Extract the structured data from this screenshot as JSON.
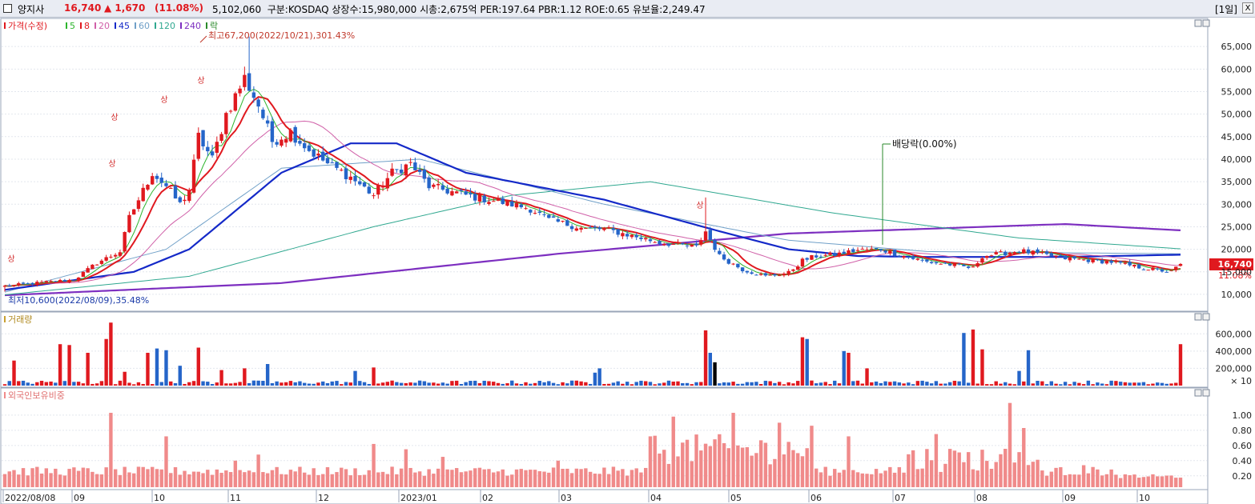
{
  "header": {
    "stock_name": "양지사",
    "price": "16,740",
    "change": "▲ 1,670",
    "change_pct": "(11.08%)",
    "info": "5,102,060  구분:KOSDAQ 상장수:15,980,000 시총:2,675억 PER:197.64 PBR:1.12 ROE:0.65 유보율:2,249.47",
    "period": "[1일]",
    "close": "X"
  },
  "colors": {
    "up": "#e0191f",
    "down": "#2565c9",
    "ma5": "#2db52d",
    "ma8": "#e0191f",
    "ma20": "#d060a8",
    "ma45": "#1429c8",
    "ma60": "#70a0c8",
    "ma120": "#30a890",
    "ma240": "#7d2fc0",
    "foreign": "#f08a8a",
    "ann": "#2a8a2a"
  },
  "chart_data": [
    {
      "type": "candlestick",
      "legend": [
        {
          "label": "가격(수정)",
          "color": "#e0191f"
        },
        {
          "label": "5",
          "color": "#2db52d"
        },
        {
          "label": "8",
          "color": "#e0191f"
        },
        {
          "label": "20",
          "color": "#d060a8"
        },
        {
          "label": "45",
          "color": "#1429c8"
        },
        {
          "label": "60",
          "color": "#70a0c8"
        },
        {
          "label": "120",
          "color": "#30a890"
        },
        {
          "label": "240",
          "color": "#7d2fc0"
        },
        {
          "label": "락",
          "color": "#2a8a2a"
        }
      ],
      "y_ticks": [
        10000,
        15000,
        20000,
        25000,
        30000,
        35000,
        40000,
        45000,
        50000,
        55000,
        60000,
        65000
      ],
      "y_tick_labels": [
        "10,000",
        "15,000",
        "20,000",
        "25,000",
        "30,000",
        "35,000",
        "40,000",
        "45,000",
        "50,000",
        "55,000",
        "60,000",
        "65,000"
      ],
      "ylim": [
        7500,
        70000
      ],
      "high_note": "최고67,200(2022/10/21),301.43%",
      "low_note": "최저10,600(2022/08/09),35.48%",
      "dividend_note": "배당락(0.00%)",
      "current_price": "16,740",
      "current_pct": "11.08%",
      "limit_up_label": "상",
      "close_anchors": [
        [
          0,
          11800
        ],
        [
          5,
          12300
        ],
        [
          10,
          12800
        ],
        [
          15,
          13200
        ],
        [
          20,
          17000
        ],
        [
          25,
          19500
        ],
        [
          27,
          27000
        ],
        [
          30,
          33000
        ],
        [
          32,
          37000
        ],
        [
          35,
          34000
        ],
        [
          38,
          30000
        ],
        [
          40,
          33000
        ],
        [
          42,
          45000
        ],
        [
          45,
          40000
        ],
        [
          48,
          50000
        ],
        [
          50,
          54000
        ],
        [
          52,
          58000
        ],
        [
          55,
          52000
        ],
        [
          58,
          44000
        ],
        [
          62,
          46000
        ],
        [
          66,
          42000
        ],
        [
          70,
          39000
        ],
        [
          75,
          36000
        ],
        [
          80,
          32000
        ],
        [
          84,
          37000
        ],
        [
          88,
          39000
        ],
        [
          92,
          34000
        ],
        [
          96,
          33000
        ],
        [
          100,
          32000
        ],
        [
          105,
          31000
        ],
        [
          110,
          30000
        ],
        [
          114,
          29000
        ],
        [
          118,
          26500
        ],
        [
          122,
          25500
        ],
        [
          126,
          24500
        ],
        [
          130,
          24500
        ],
        [
          134,
          23500
        ],
        [
          138,
          22500
        ],
        [
          142,
          21500
        ],
        [
          146,
          21000
        ],
        [
          150,
          20500
        ],
        [
          152,
          24000
        ],
        [
          155,
          18500
        ],
        [
          160,
          15500
        ],
        [
          165,
          14000
        ],
        [
          170,
          14800
        ],
        [
          173,
          17500
        ],
        [
          176,
          18500
        ],
        [
          180,
          18800
        ],
        [
          185,
          19800
        ],
        [
          190,
          20000
        ],
        [
          195,
          18500
        ],
        [
          200,
          17200
        ],
        [
          205,
          16600
        ],
        [
          210,
          15800
        ],
        [
          212,
          18500
        ],
        [
          216,
          19000
        ],
        [
          220,
          19700
        ],
        [
          225,
          18800
        ],
        [
          230,
          18000
        ],
        [
          235,
          17600
        ],
        [
          240,
          17200
        ],
        [
          245,
          16200
        ],
        [
          250,
          15400
        ],
        [
          253,
          15000
        ],
        [
          255,
          16740
        ]
      ],
      "ma_tails": {
        "ma5": 16500,
        "ma8": 16800,
        "ma20": 17300,
        "ma45": 18900,
        "ma60": 19200,
        "ma120": 20100,
        "ma240": 25200
      }
    },
    {
      "type": "bar",
      "title": "거래량",
      "y_ticks": [
        200000,
        400000,
        600000
      ],
      "y_tick_labels": [
        "200,000",
        "400,000",
        "600,000"
      ],
      "ylim": [
        0,
        760000
      ],
      "unit": "× 10",
      "spikes": [
        [
          2,
          290000
        ],
        [
          12,
          480000
        ],
        [
          14,
          470000
        ],
        [
          18,
          380000
        ],
        [
          22,
          540000
        ],
        [
          23,
          730000
        ],
        [
          26,
          160000
        ],
        [
          31,
          380000
        ],
        [
          33,
          430000
        ],
        [
          35,
          410000
        ],
        [
          38,
          230000
        ],
        [
          42,
          440000
        ],
        [
          47,
          180000
        ],
        [
          52,
          200000
        ],
        [
          57,
          250000
        ],
        [
          76,
          170000
        ],
        [
          80,
          210000
        ],
        [
          128,
          150000
        ],
        [
          129,
          200000
        ],
        [
          152,
          640000
        ],
        [
          153,
          380000
        ],
        [
          154,
          270000
        ],
        [
          173,
          560000
        ],
        [
          174,
          540000
        ],
        [
          182,
          400000
        ],
        [
          183,
          380000
        ],
        [
          187,
          200000
        ],
        [
          208,
          610000
        ],
        [
          210,
          650000
        ],
        [
          212,
          420000
        ],
        [
          220,
          170000
        ],
        [
          222,
          410000
        ],
        [
          255,
          480000
        ]
      ]
    },
    {
      "type": "bar",
      "title": "외국인보유비중",
      "y_ticks": [
        0.2,
        0.4,
        0.6,
        0.8,
        1.0
      ],
      "y_tick_labels": [
        "0.20",
        "0.40",
        "0.60",
        "0.80",
        "1.00"
      ],
      "ylim": [
        0.05,
        1.22
      ],
      "spikes": [
        [
          23,
          1.03
        ],
        [
          35,
          0.72
        ],
        [
          50,
          0.4
        ],
        [
          55,
          0.48
        ],
        [
          80,
          0.62
        ],
        [
          87,
          0.55
        ],
        [
          95,
          0.45
        ],
        [
          120,
          0.4
        ],
        [
          140,
          0.72
        ],
        [
          145,
          0.98
        ],
        [
          158,
          1.03
        ],
        [
          168,
          0.9
        ],
        [
          175,
          0.86
        ],
        [
          183,
          0.72
        ],
        [
          202,
          0.75
        ],
        [
          218,
          1.16
        ],
        [
          221,
          0.83
        ],
        [
          234,
          0.34
        ]
      ]
    }
  ],
  "x_axis": {
    "labels": [
      "2022/08/08",
      "09",
      "10",
      "11",
      "12",
      "2023/01",
      "02",
      "03",
      "04",
      "05",
      "06",
      "07",
      "08",
      "09",
      "10"
    ]
  }
}
